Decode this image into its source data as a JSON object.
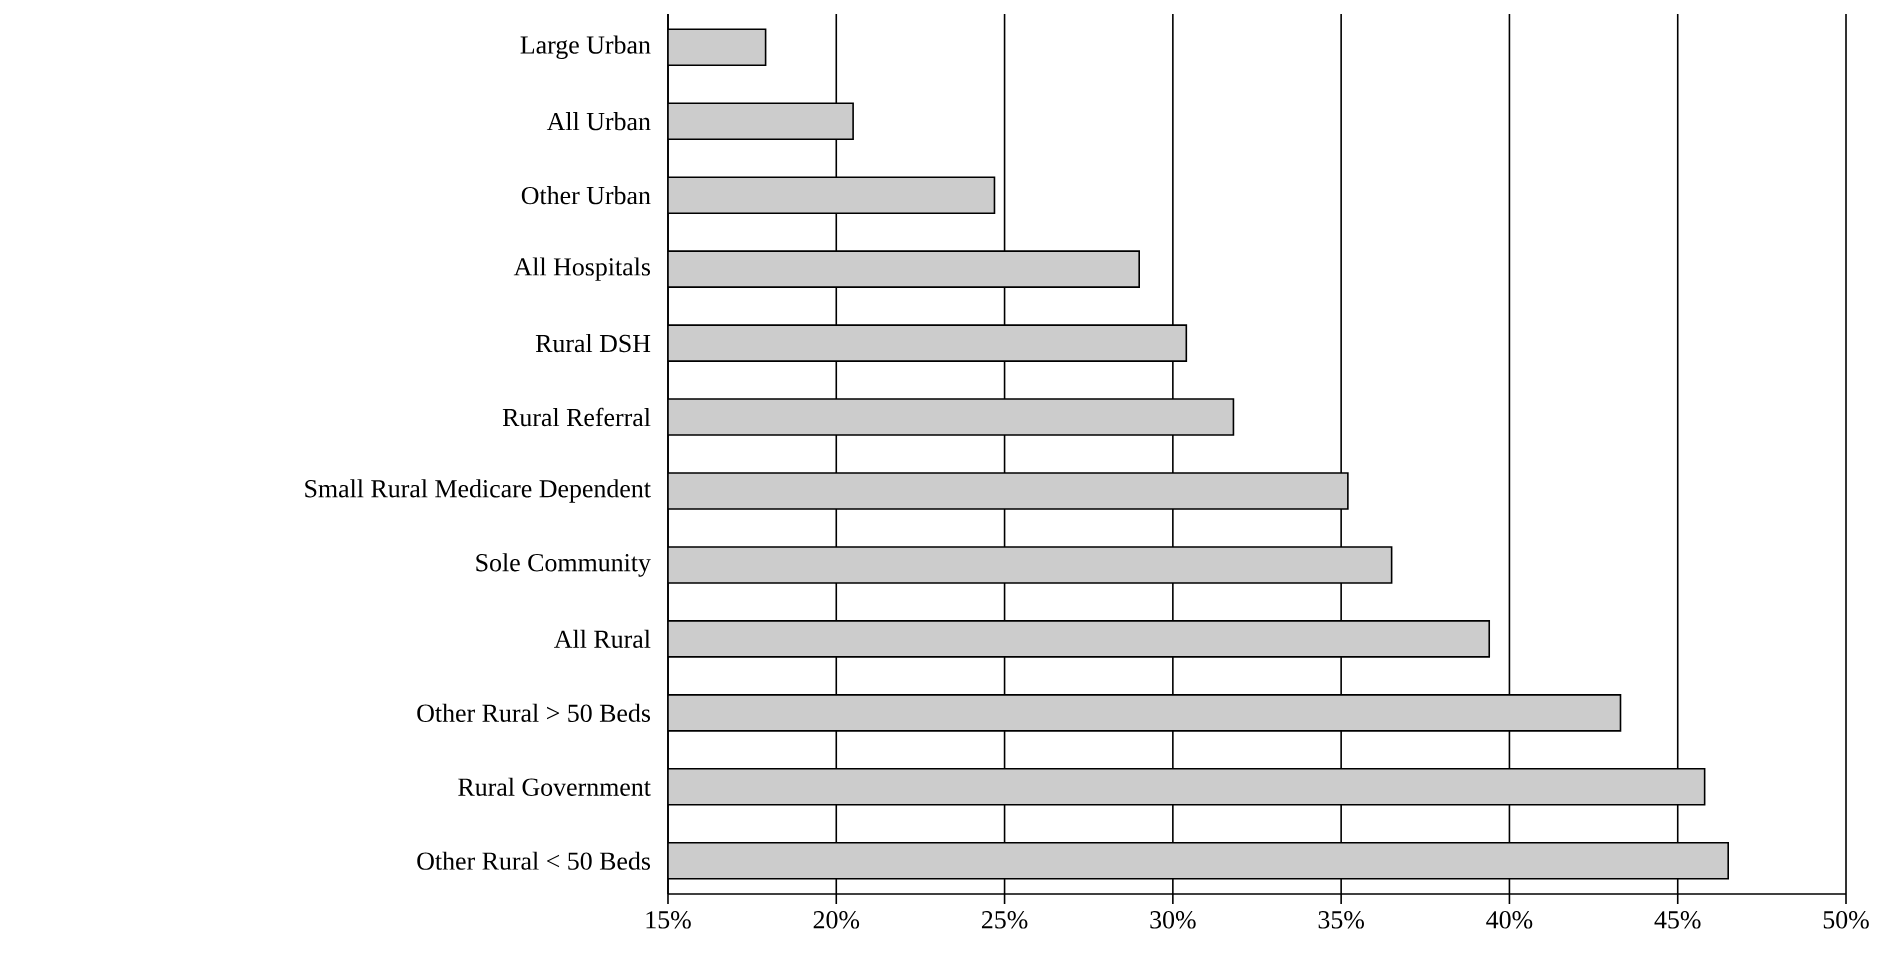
{
  "chart_data": {
    "type": "bar",
    "orientation": "horizontal",
    "categories": [
      "Large Urban",
      "All Urban",
      "Other Urban",
      "All Hospitals",
      "Rural DSH",
      "Rural Referral",
      "Small Rural Medicare Dependent",
      "Sole Community",
      "All Rural",
      "Other Rural > 50 Beds",
      "Rural Government",
      "Other Rural < 50 Beds"
    ],
    "values": [
      17.9,
      20.5,
      24.7,
      29.0,
      30.4,
      31.8,
      35.2,
      36.5,
      39.4,
      43.3,
      45.8,
      46.5
    ],
    "color": "#cccccc",
    "xlim": [
      15,
      50
    ],
    "xticks": [
      {
        "value": 15,
        "label": "15%"
      },
      {
        "value": 20,
        "label": "20%"
      },
      {
        "value": 25,
        "label": "25%"
      },
      {
        "value": 30,
        "label": "30%"
      },
      {
        "value": 35,
        "label": "35%"
      },
      {
        "value": 40,
        "label": "40%"
      },
      {
        "value": 45,
        "label": "45%"
      },
      {
        "value": 50,
        "label": "50%"
      }
    ],
    "grid": "x"
  }
}
